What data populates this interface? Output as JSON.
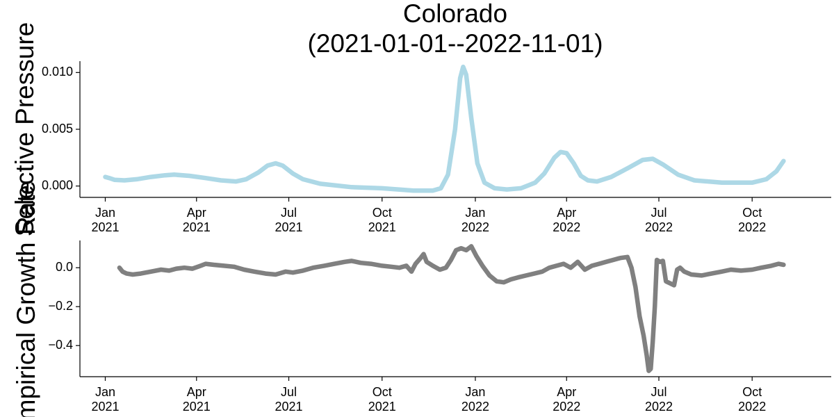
{
  "chart_data": [
    {
      "type": "line",
      "title": "Colorado\n(2021-01-01--2022-11-01)",
      "ylabel": "Selective Pressure",
      "xlim": [
        "2020-12-07",
        "2022-12-18"
      ],
      "ylim": [
        -0.001,
        0.011
      ],
      "yticks": [
        0.0,
        0.005,
        0.01
      ],
      "ytick_labels": [
        "0.000",
        "0.005",
        "0.010"
      ],
      "xticks": [
        "2021-01-01",
        "2021-04-01",
        "2021-07-01",
        "2021-10-01",
        "2022-01-01",
        "2022-04-01",
        "2022-07-01",
        "2022-10-01"
      ],
      "xtick_labels": [
        "Jan\n2021",
        "Apr\n2021",
        "Jul\n2021",
        "Oct\n2021",
        "Jan\n2022",
        "Apr\n2022",
        "Jul\n2022",
        "Oct\n2022"
      ],
      "grid": false,
      "series": [
        {
          "color": "#add8e6",
          "points": [
            [
              "2021-01-01",
              0.0008
            ],
            [
              "2021-01-05",
              0.0007
            ],
            [
              "2021-01-10",
              0.00055
            ],
            [
              "2021-01-20",
              0.0005
            ],
            [
              "2021-02-01",
              0.0006
            ],
            [
              "2021-02-15",
              0.0008
            ],
            [
              "2021-03-01",
              0.00095
            ],
            [
              "2021-03-10",
              0.001
            ],
            [
              "2021-03-25",
              0.0009
            ],
            [
              "2021-04-10",
              0.0007
            ],
            [
              "2021-04-25",
              0.0005
            ],
            [
              "2021-05-10",
              0.0004
            ],
            [
              "2021-05-20",
              0.0006
            ],
            [
              "2021-06-01",
              0.0012
            ],
            [
              "2021-06-10",
              0.0018
            ],
            [
              "2021-06-18",
              0.002
            ],
            [
              "2021-06-25",
              0.0018
            ],
            [
              "2021-07-05",
              0.0011
            ],
            [
              "2021-07-15",
              0.0006
            ],
            [
              "2021-08-01",
              0.0002
            ],
            [
              "2021-09-01",
              -0.0001
            ],
            [
              "2021-10-01",
              -0.0002
            ],
            [
              "2021-11-01",
              -0.0004
            ],
            [
              "2021-11-20",
              -0.0004
            ],
            [
              "2021-11-28",
              -0.0002
            ],
            [
              "2021-12-05",
              0.001
            ],
            [
              "2021-12-12",
              0.005
            ],
            [
              "2021-12-17",
              0.0095
            ],
            [
              "2021-12-20",
              0.0105
            ],
            [
              "2021-12-23",
              0.0098
            ],
            [
              "2021-12-28",
              0.006
            ],
            [
              "2022-01-03",
              0.002
            ],
            [
              "2022-01-10",
              0.0003
            ],
            [
              "2022-01-20",
              -0.0002
            ],
            [
              "2022-02-01",
              -0.0003
            ],
            [
              "2022-02-15",
              -0.0002
            ],
            [
              "2022-03-01",
              0.0003
            ],
            [
              "2022-03-10",
              0.0011
            ],
            [
              "2022-03-15",
              0.0018
            ],
            [
              "2022-03-20",
              0.0025
            ],
            [
              "2022-03-26",
              0.003
            ],
            [
              "2022-04-01",
              0.0029
            ],
            [
              "2022-04-08",
              0.002
            ],
            [
              "2022-04-15",
              0.0009
            ],
            [
              "2022-04-22",
              0.0005
            ],
            [
              "2022-05-01",
              0.0004
            ],
            [
              "2022-05-15",
              0.0008
            ],
            [
              "2022-06-01",
              0.0016
            ],
            [
              "2022-06-15",
              0.0023
            ],
            [
              "2022-06-25",
              0.0024
            ],
            [
              "2022-07-05",
              0.0019
            ],
            [
              "2022-07-20",
              0.001
            ],
            [
              "2022-08-05",
              0.0005
            ],
            [
              "2022-09-01",
              0.0003
            ],
            [
              "2022-10-01",
              0.0003
            ],
            [
              "2022-10-15",
              0.0006
            ],
            [
              "2022-10-25",
              0.0013
            ],
            [
              "2022-11-01",
              0.0022
            ]
          ]
        }
      ]
    },
    {
      "type": "line",
      "ylabel": "Empirical Growth Rate",
      "xlim": [
        "2020-12-07",
        "2022-12-18"
      ],
      "ylim": [
        -0.56,
        0.14
      ],
      "yticks": [
        0.0,
        -0.2,
        -0.4
      ],
      "ytick_labels": [
        "0.0",
        "−0.2",
        "−0.4"
      ],
      "xticks": [
        "2021-01-01",
        "2021-04-01",
        "2021-07-01",
        "2021-10-01",
        "2022-01-01",
        "2022-04-01",
        "2022-07-01",
        "2022-10-01"
      ],
      "xtick_labels": [
        "Jan\n2021",
        "Apr\n2021",
        "Jul\n2021",
        "Oct\n2021",
        "Jan\n2022",
        "Apr\n2022",
        "Jul\n2022",
        "Oct\n2022"
      ],
      "grid": false,
      "series": [
        {
          "color": "#808080",
          "points": [
            [
              "2021-01-15",
              0.0
            ],
            [
              "2021-01-18",
              -0.02
            ],
            [
              "2021-01-22",
              -0.03
            ],
            [
              "2021-01-28",
              -0.035
            ],
            [
              "2021-02-05",
              -0.03
            ],
            [
              "2021-02-15",
              -0.02
            ],
            [
              "2021-02-25",
              -0.01
            ],
            [
              "2021-03-05",
              -0.015
            ],
            [
              "2021-03-12",
              -0.005
            ],
            [
              "2021-03-20",
              0.0
            ],
            [
              "2021-03-28",
              -0.005
            ],
            [
              "2021-04-05",
              0.01
            ],
            [
              "2021-04-10",
              0.02
            ],
            [
              "2021-04-18",
              0.015
            ],
            [
              "2021-04-28",
              0.01
            ],
            [
              "2021-05-08",
              0.005
            ],
            [
              "2021-05-18",
              -0.01
            ],
            [
              "2021-05-28",
              -0.02
            ],
            [
              "2021-06-08",
              -0.03
            ],
            [
              "2021-06-18",
              -0.035
            ],
            [
              "2021-06-28",
              -0.02
            ],
            [
              "2021-07-05",
              -0.025
            ],
            [
              "2021-07-15",
              -0.015
            ],
            [
              "2021-07-25",
              0.0
            ],
            [
              "2021-08-05",
              0.01
            ],
            [
              "2021-08-15",
              0.02
            ],
            [
              "2021-08-25",
              0.03
            ],
            [
              "2021-09-01",
              0.035
            ],
            [
              "2021-09-10",
              0.025
            ],
            [
              "2021-09-20",
              0.02
            ],
            [
              "2021-10-01",
              0.01
            ],
            [
              "2021-10-10",
              0.005
            ],
            [
              "2021-10-18",
              0.0
            ],
            [
              "2021-10-25",
              0.01
            ],
            [
              "2021-10-30",
              -0.02
            ],
            [
              "2021-11-03",
              0.02
            ],
            [
              "2021-11-08",
              0.05
            ],
            [
              "2021-11-11",
              0.07
            ],
            [
              "2021-11-14",
              0.03
            ],
            [
              "2021-11-20",
              0.01
            ],
            [
              "2021-11-27",
              -0.01
            ],
            [
              "2021-12-03",
              0.0
            ],
            [
              "2021-12-08",
              0.04
            ],
            [
              "2021-12-13",
              0.09
            ],
            [
              "2021-12-18",
              0.1
            ],
            [
              "2021-12-23",
              0.09
            ],
            [
              "2021-12-28",
              0.11
            ],
            [
              "2022-01-02",
              0.06
            ],
            [
              "2022-01-08",
              0.01
            ],
            [
              "2022-01-15",
              -0.04
            ],
            [
              "2022-01-22",
              -0.07
            ],
            [
              "2022-01-29",
              -0.075
            ],
            [
              "2022-02-05",
              -0.06
            ],
            [
              "2022-02-12",
              -0.05
            ],
            [
              "2022-02-20",
              -0.04
            ],
            [
              "2022-02-28",
              -0.03
            ],
            [
              "2022-03-08",
              -0.02
            ],
            [
              "2022-03-15",
              0.0
            ],
            [
              "2022-03-22",
              0.01
            ],
            [
              "2022-03-29",
              0.02
            ],
            [
              "2022-04-05",
              0.0
            ],
            [
              "2022-04-12",
              0.03
            ],
            [
              "2022-04-19",
              -0.01
            ],
            [
              "2022-04-26",
              0.01
            ],
            [
              "2022-05-03",
              0.02
            ],
            [
              "2022-05-10",
              0.03
            ],
            [
              "2022-05-17",
              0.04
            ],
            [
              "2022-05-24",
              0.05
            ],
            [
              "2022-05-31",
              0.055
            ],
            [
              "2022-06-04",
              0.0
            ],
            [
              "2022-06-08",
              -0.1
            ],
            [
              "2022-06-12",
              -0.25
            ],
            [
              "2022-06-16",
              -0.35
            ],
            [
              "2022-06-19",
              -0.45
            ],
            [
              "2022-06-21",
              -0.53
            ],
            [
              "2022-06-23",
              -0.52
            ],
            [
              "2022-06-25",
              -0.38
            ],
            [
              "2022-06-27",
              -0.2
            ],
            [
              "2022-06-29",
              0.04
            ],
            [
              "2022-07-02",
              0.03
            ],
            [
              "2022-07-05",
              0.035
            ],
            [
              "2022-07-08",
              -0.07
            ],
            [
              "2022-07-12",
              -0.08
            ],
            [
              "2022-07-16",
              -0.09
            ],
            [
              "2022-07-19",
              -0.01
            ],
            [
              "2022-07-22",
              0.0
            ],
            [
              "2022-07-26",
              -0.02
            ],
            [
              "2022-08-02",
              -0.035
            ],
            [
              "2022-08-12",
              -0.04
            ],
            [
              "2022-08-22",
              -0.03
            ],
            [
              "2022-09-01",
              -0.02
            ],
            [
              "2022-09-10",
              -0.01
            ],
            [
              "2022-09-20",
              -0.015
            ],
            [
              "2022-10-01",
              -0.01
            ],
            [
              "2022-10-10",
              0.0
            ],
            [
              "2022-10-20",
              0.01
            ],
            [
              "2022-10-27",
              0.02
            ],
            [
              "2022-11-01",
              0.015
            ]
          ]
        }
      ]
    }
  ]
}
